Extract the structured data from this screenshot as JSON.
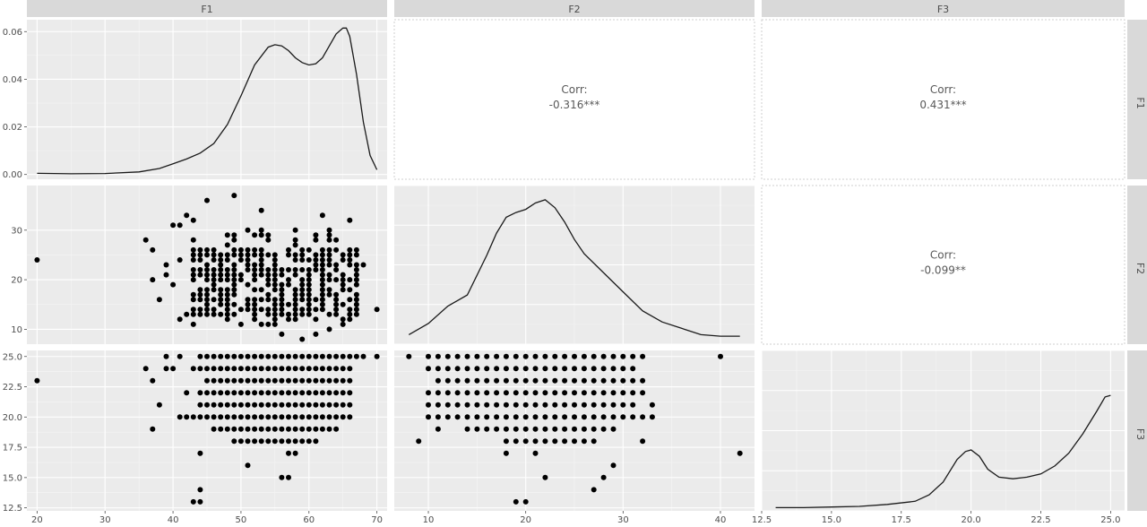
{
  "variables": [
    "F1",
    "F2",
    "F3"
  ],
  "corr_label": "Corr:",
  "chart_data": [
    {
      "type": "line",
      "panel": "F1-density",
      "var": "F1",
      "xlim": [
        18.5,
        71.5
      ],
      "ylim": [
        -0.002,
        0.065
      ],
      "x_ticks": [
        20,
        30,
        40,
        50,
        60,
        70
      ],
      "x_tick_labels": [
        "20",
        "30",
        "40",
        "50",
        "60",
        "70"
      ],
      "y_ticks": [
        0.0,
        0.02,
        0.04,
        0.06
      ],
      "y_tick_labels": [
        "0.00",
        "0.02",
        "0.04",
        "0.06"
      ],
      "x": [
        20,
        25,
        30,
        35,
        38,
        40,
        42,
        44,
        46,
        48,
        50,
        52,
        54,
        55,
        56,
        57,
        58,
        59,
        60,
        61,
        62,
        63,
        64,
        65,
        65.5,
        66,
        67,
        68,
        69,
        70
      ],
      "y": [
        0.0005,
        0.0003,
        0.0004,
        0.0011,
        0.0025,
        0.0045,
        0.0065,
        0.009,
        0.013,
        0.021,
        0.033,
        0.046,
        0.0535,
        0.0545,
        0.054,
        0.052,
        0.049,
        0.047,
        0.046,
        0.0465,
        0.049,
        0.054,
        0.059,
        0.0615,
        0.0615,
        0.058,
        0.042,
        0.022,
        0.008,
        0.002
      ]
    },
    {
      "type": "line",
      "panel": "F2-density",
      "var": "F2",
      "xlim": [
        6.5,
        43.5
      ],
      "ylim": [
        0,
        0.1
      ],
      "x_ticks": [
        10,
        20,
        30,
        40
      ],
      "x_tick_labels": [
        "10",
        "20",
        "30",
        "40"
      ],
      "x": [
        8,
        10,
        12,
        14,
        16,
        17,
        18,
        19,
        20,
        21,
        22,
        23,
        24,
        25,
        26,
        28,
        30,
        32,
        34,
        36,
        38,
        40,
        42
      ],
      "y": [
        0.006,
        0.013,
        0.024,
        0.031,
        0.056,
        0.07,
        0.08,
        0.083,
        0.085,
        0.089,
        0.091,
        0.086,
        0.077,
        0.066,
        0.057,
        0.045,
        0.033,
        0.021,
        0.014,
        0.01,
        0.006,
        0.005,
        0.005
      ]
    },
    {
      "type": "line",
      "panel": "F3-density",
      "var": "F3",
      "xlim": [
        12.5,
        25.5
      ],
      "ylim": [
        0,
        0.5
      ],
      "x_ticks": [
        12.5,
        15.0,
        17.5,
        20.0,
        22.5,
        25.0
      ],
      "x_tick_labels": [
        "12.5",
        "15.0",
        "17.5",
        "20.0",
        "22.5",
        "25.0"
      ],
      "x": [
        13,
        14,
        15,
        16,
        17,
        18,
        18.5,
        19,
        19.5,
        19.8,
        20,
        20.3,
        20.6,
        21,
        21.5,
        22,
        22.5,
        23,
        23.5,
        24,
        24.5,
        24.8,
        25
      ],
      "y": [
        0.01,
        0.01,
        0.012,
        0.014,
        0.02,
        0.03,
        0.05,
        0.09,
        0.16,
        0.185,
        0.19,
        0.17,
        0.13,
        0.105,
        0.1,
        0.105,
        0.115,
        0.14,
        0.18,
        0.24,
        0.31,
        0.355,
        0.36
      ]
    },
    {
      "type": "scatter",
      "panel": "F2-vs-F1",
      "x_var": "F1",
      "y_var": "F2",
      "xlim": [
        18.5,
        71.5
      ],
      "ylim": [
        7,
        39
      ],
      "y_ticks": [
        10,
        20,
        30
      ],
      "y_tick_labels": [
        "10",
        "20",
        "30"
      ],
      "points": [
        [
          20,
          24
        ],
        [
          36,
          28
        ],
        [
          37,
          26
        ],
        [
          37,
          20
        ],
        [
          38,
          16
        ],
        [
          39,
          23
        ],
        [
          39,
          21
        ],
        [
          40,
          19
        ],
        [
          40,
          31
        ],
        [
          41,
          31
        ],
        [
          41,
          24
        ],
        [
          41,
          12
        ],
        [
          42,
          33
        ],
        [
          42,
          13
        ],
        [
          43,
          32
        ],
        [
          45,
          36
        ],
        [
          49,
          37
        ],
        [
          53,
          34
        ],
        [
          53,
          11
        ],
        [
          56,
          9
        ],
        [
          59,
          8
        ],
        [
          61,
          9
        ],
        [
          62,
          33
        ],
        [
          63,
          10
        ],
        [
          66,
          32
        ],
        [
          68,
          23
        ],
        [
          70,
          14
        ]
      ],
      "dense_cloud": {
        "x_range": [
          43,
          67
        ],
        "y_range": [
          11,
          30
        ],
        "step_x": 1,
        "step_y": 1,
        "density": 0.72
      }
    },
    {
      "type": "scatter",
      "panel": "F3-vs-F1",
      "x_var": "F1",
      "y_var": "F3",
      "xlim": [
        18.5,
        71.5
      ],
      "ylim": [
        12.25,
        25.5
      ],
      "y_ticks": [
        12.5,
        15.0,
        17.5,
        20.0,
        22.5,
        25.0
      ],
      "y_tick_labels": [
        "12.5",
        "15.0",
        "17.5",
        "20.0",
        "22.5",
        "25.0"
      ],
      "points": [
        [
          20,
          23
        ],
        [
          36,
          24
        ],
        [
          37,
          23
        ],
        [
          37,
          19
        ],
        [
          38,
          21
        ],
        [
          39,
          25
        ],
        [
          39,
          24
        ],
        [
          40,
          24
        ],
        [
          41,
          25
        ],
        [
          42,
          22
        ],
        [
          43,
          13
        ],
        [
          44,
          13
        ],
        [
          44,
          14
        ],
        [
          44,
          17
        ],
        [
          51,
          16
        ],
        [
          56,
          15
        ],
        [
          57,
          15
        ],
        [
          57,
          17
        ],
        [
          58,
          17
        ],
        [
          68,
          25
        ],
        [
          70,
          25
        ]
      ],
      "rows": [
        {
          "y": 25,
          "x_from": 44,
          "x_to": 67
        },
        {
          "y": 24,
          "x_from": 43,
          "x_to": 66
        },
        {
          "y": 23,
          "x_from": 45,
          "x_to": 66
        },
        {
          "y": 22,
          "x_from": 44,
          "x_to": 66
        },
        {
          "y": 21,
          "x_from": 44,
          "x_to": 66
        },
        {
          "y": 20,
          "x_from": 41,
          "x_to": 66
        },
        {
          "y": 19,
          "x_from": 46,
          "x_to": 64
        },
        {
          "y": 18,
          "x_from": 49,
          "x_to": 61
        }
      ]
    },
    {
      "type": "scatter",
      "panel": "F3-vs-F2",
      "x_var": "F2",
      "y_var": "F3",
      "xlim": [
        6.5,
        43.5
      ],
      "ylim": [
        12.25,
        25.5
      ],
      "points": [
        [
          8,
          25
        ],
        [
          9,
          18
        ],
        [
          11,
          19
        ],
        [
          18,
          17
        ],
        [
          19,
          13
        ],
        [
          20,
          13
        ],
        [
          21,
          17
        ],
        [
          22,
          15
        ],
        [
          27,
          14
        ],
        [
          28,
          15
        ],
        [
          29,
          16
        ],
        [
          32,
          18
        ],
        [
          33,
          20
        ],
        [
          33,
          21
        ],
        [
          40,
          25
        ],
        [
          42,
          17
        ]
      ],
      "rows": [
        {
          "y": 25,
          "x_from": 10,
          "x_to": 32
        },
        {
          "y": 24,
          "x_from": 10,
          "x_to": 31
        },
        {
          "y": 23,
          "x_from": 11,
          "x_to": 32
        },
        {
          "y": 22,
          "x_from": 10,
          "x_to": 32
        },
        {
          "y": 21,
          "x_from": 10,
          "x_to": 31
        },
        {
          "y": 20,
          "x_from": 10,
          "x_to": 32
        },
        {
          "y": 19,
          "x_from": 14,
          "x_to": 29
        },
        {
          "y": 18,
          "x_from": 18,
          "x_to": 27
        }
      ]
    },
    {
      "type": "table",
      "panel": "corr-F1-F2",
      "label": "Corr:",
      "value": "-0.316***"
    },
    {
      "type": "table",
      "panel": "corr-F1-F3",
      "label": "Corr:",
      "value": "0.431***"
    },
    {
      "type": "table",
      "panel": "corr-F2-F3",
      "label": "Corr:",
      "value": "-0.099**"
    }
  ]
}
